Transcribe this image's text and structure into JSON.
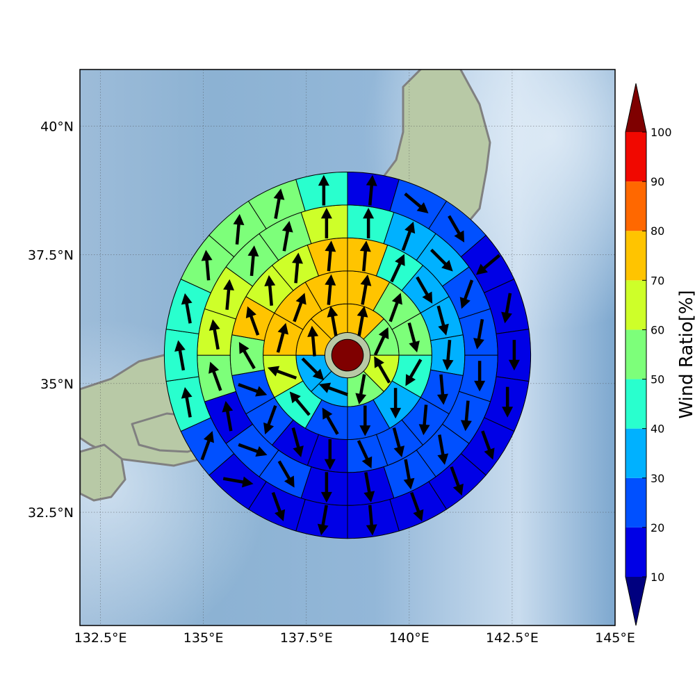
{
  "chart_data": {
    "type": "polar-sector-map",
    "title": "",
    "xlabel": "",
    "ylabel": "",
    "xlim": [
      132.0,
      145.0
    ],
    "ylim": [
      30.3,
      41.1
    ],
    "x_ticks": [
      132.5,
      135,
      137.5,
      140,
      142.5,
      145
    ],
    "x_tick_labels": [
      "132.5°E",
      "135°E",
      "137.5°E",
      "140°E",
      "142.5°E",
      "145°E"
    ],
    "y_ticks": [
      32.5,
      35,
      37.5,
      40
    ],
    "y_tick_labels": [
      "32.5°N",
      "35°N",
      "37.5°N",
      "40°N"
    ],
    "grid": true,
    "center": {
      "lon": 138.5,
      "lat": 35.55,
      "value": 100
    },
    "rings": [
      {
        "inner_deg": 0.55,
        "outer_deg": 1.25,
        "values": [
          75,
          55,
          65,
          50,
          30,
          35,
          70,
          75
        ],
        "wind_dir": [
          10,
          25,
          330,
          190,
          290,
          135,
          355,
          350
        ]
      },
      {
        "inner_deg": 1.25,
        "outer_deg": 2.05,
        "values": [
          75,
          55,
          55,
          40,
          30,
          25,
          20,
          45,
          65,
          70,
          70,
          75
        ],
        "wind_dir": [
          10,
          20,
          165,
          210,
          180,
          180,
          330,
          320,
          290,
          15,
          20,
          5
        ]
      },
      {
        "inner_deg": 2.05,
        "outer_deg": 2.85,
        "values": [
          70,
          45,
          35,
          30,
          35,
          25,
          25,
          20,
          20,
          15,
          15,
          25,
          20,
          50,
          75,
          60,
          60,
          75
        ],
        "wind_dir": [
          5,
          25,
          150,
          165,
          185,
          175,
          185,
          165,
          155,
          180,
          165,
          200,
          110,
          330,
          340,
          355,
          5,
          5
        ]
      },
      {
        "inner_deg": 2.85,
        "outer_deg": 3.65,
        "values": [
          45,
          35,
          30,
          20,
          20,
          20,
          25,
          20,
          20,
          10,
          10,
          20,
          20,
          10,
          50,
          60,
          60,
          55,
          55,
          60
        ],
        "wind_dir": [
          0,
          20,
          135,
          200,
          190,
          180,
          185,
          170,
          170,
          170,
          180,
          150,
          110,
          350,
          340,
          350,
          5,
          5,
          10,
          0
        ]
      },
      {
        "inner_deg": 3.65,
        "outer_deg": 4.45,
        "values": [
          15,
          20,
          20,
          15,
          15,
          10,
          15,
          15,
          10,
          10,
          10,
          10,
          10,
          15,
          20,
          45,
          45,
          45,
          50,
          50,
          50,
          45
        ],
        "wind_dir": [
          5,
          130,
          150,
          230,
          190,
          180,
          180,
          160,
          160,
          160,
          175,
          190,
          160,
          100,
          20,
          350,
          350,
          350,
          355,
          5,
          10,
          0
        ]
      }
    ]
  },
  "colorbar": {
    "label": "Wind Ratio[%]",
    "tick_labels": [
      "10",
      "20",
      "30",
      "40",
      "50",
      "60",
      "70",
      "80",
      "90",
      "100"
    ],
    "colors": [
      "#00007f",
      "#0000e6",
      "#0050ff",
      "#00b1ff",
      "#29ffce",
      "#7dff7a",
      "#ceff29",
      "#ffc400",
      "#ff6800",
      "#f10800",
      "#7f0000"
    ]
  }
}
